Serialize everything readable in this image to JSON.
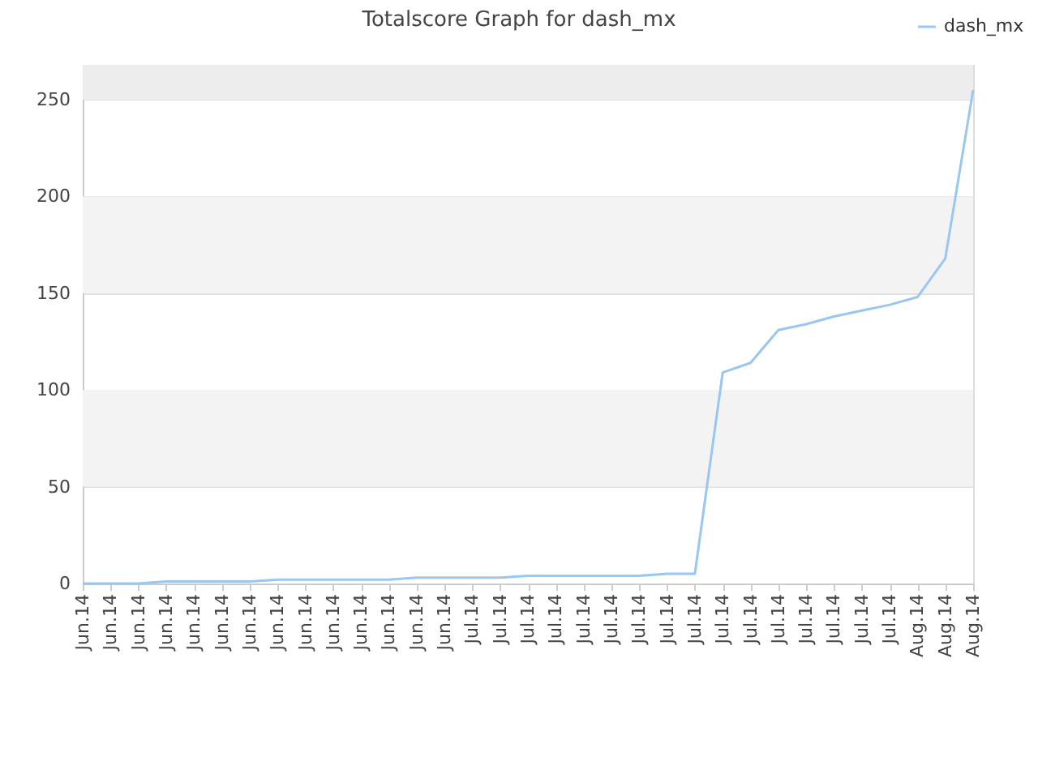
{
  "chart_data": {
    "type": "line",
    "title": "Totalscore Graph for dash_mx",
    "categories": [
      "Jun.14",
      "Jun.14",
      "Jun.14",
      "Jun.14",
      "Jun.14",
      "Jun.14",
      "Jun.14",
      "Jun.14",
      "Jun.14",
      "Jun.14",
      "Jun.14",
      "Jun.14",
      "Jun.14",
      "Jun.14",
      "Jul.14",
      "Jul.14",
      "Jul.14",
      "Jul.14",
      "Jul.14",
      "Jul.14",
      "Jul.14",
      "Jul.14",
      "Jul.14",
      "Jul.14",
      "Jul.14",
      "Jul.14",
      "Jul.14",
      "Jul.14",
      "Jul.14",
      "Jul.14",
      "Aug.14",
      "Aug.14",
      "Aug.14"
    ],
    "ylim": [
      0,
      268
    ],
    "yticks": [
      0,
      50,
      100,
      150,
      200,
      250
    ],
    "grid": "y",
    "legend": "top right",
    "bands": [
      {
        "axis": "y",
        "from": 50,
        "to": 100,
        "color": "#f3f3f3"
      },
      {
        "axis": "y",
        "from": 150,
        "to": 200,
        "color": "#f3f3f3"
      },
      {
        "axis": "y",
        "from": 250,
        "to": 268,
        "color": "#ededed"
      }
    ],
    "series": [
      {
        "name": "dash_mx",
        "color": "#99c7f2",
        "values": [
          0,
          0,
          0,
          1,
          1,
          1,
          1,
          2,
          2,
          2,
          2,
          2,
          3,
          3,
          3,
          3,
          4,
          4,
          4,
          4,
          4,
          5,
          5,
          109,
          114,
          131,
          134,
          138,
          141,
          144,
          148,
          168,
          255
        ]
      }
    ]
  }
}
